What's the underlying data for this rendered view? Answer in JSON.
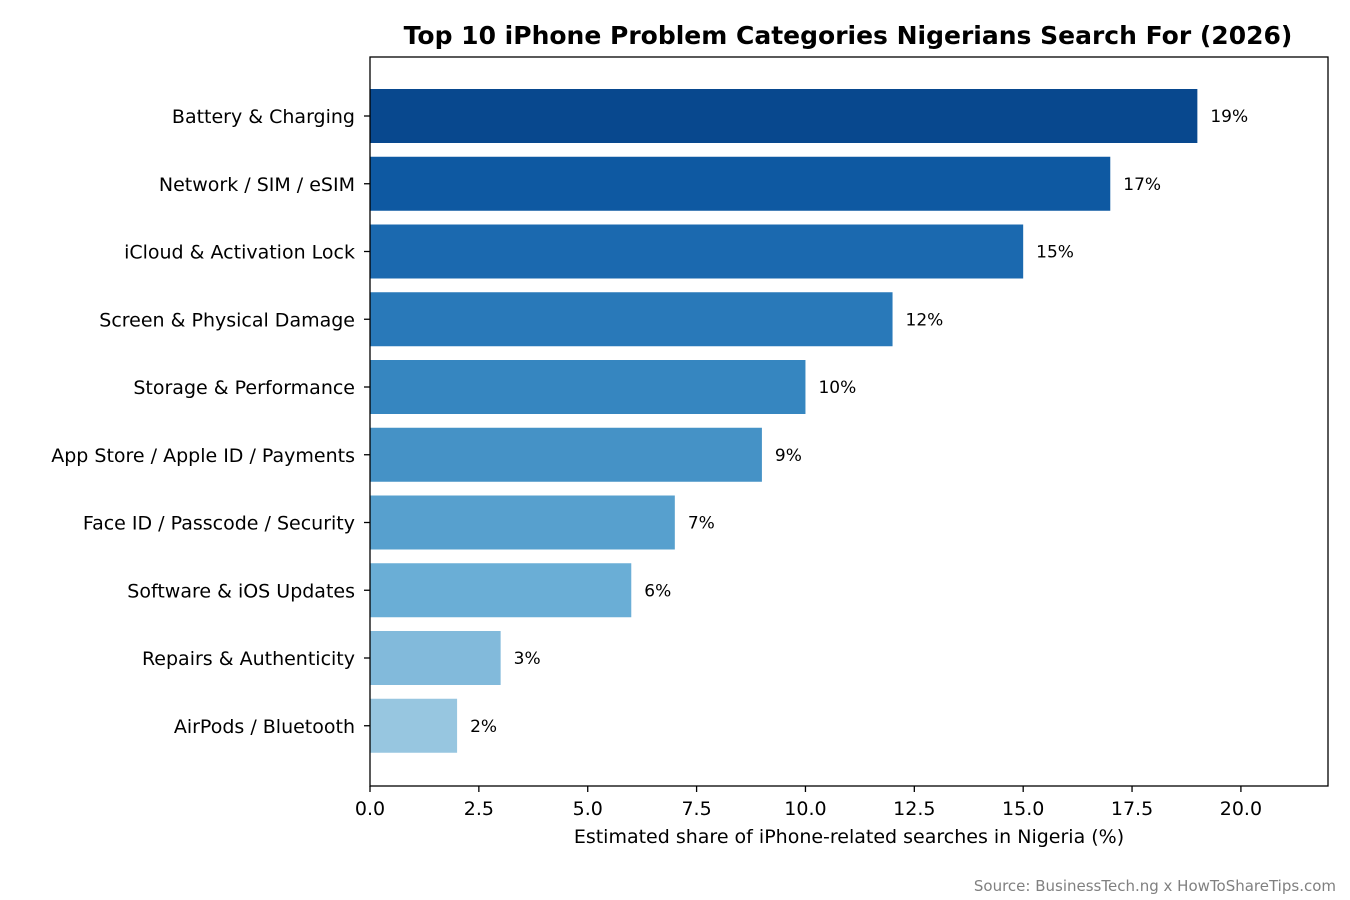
{
  "chart_data": {
    "type": "bar",
    "orientation": "horizontal",
    "title": "Top 10 iPhone Problem Categories Nigerians Search For (2026)",
    "xlabel": "Estimated share of iPhone-related searches in Nigeria (%)",
    "ylabel": "",
    "xlim": [
      0,
      22
    ],
    "xticks": [
      "0.0",
      "2.5",
      "5.0",
      "7.5",
      "10.0",
      "12.5",
      "15.0",
      "17.5",
      "20.0"
    ],
    "categories": [
      "Battery & Charging",
      "Network / SIM / eSIM",
      "iCloud & Activation Lock",
      "Screen & Physical Damage",
      "Storage & Performance",
      "App Store / Apple ID / Payments",
      "Face ID / Passcode / Security",
      "Software & iOS Updates",
      "Repairs & Authenticity",
      "AirPods / Bluetooth"
    ],
    "values": [
      19,
      17,
      15,
      12,
      10,
      9,
      7,
      6,
      3,
      2
    ],
    "value_labels": [
      "19%",
      "17%",
      "15%",
      "12%",
      "10%",
      "9%",
      "7%",
      "6%",
      "3%",
      "2%"
    ],
    "colors": [
      "#08488e",
      "#0e59a2",
      "#1b69af",
      "#2979b9",
      "#3686c0",
      "#4592c6",
      "#57a0ce",
      "#6aaed6",
      "#82badb",
      "#97c6e0"
    ],
    "grid": false,
    "legend": "none",
    "source": "Source: BusinessTech.ng x HowToShareTips.com"
  }
}
